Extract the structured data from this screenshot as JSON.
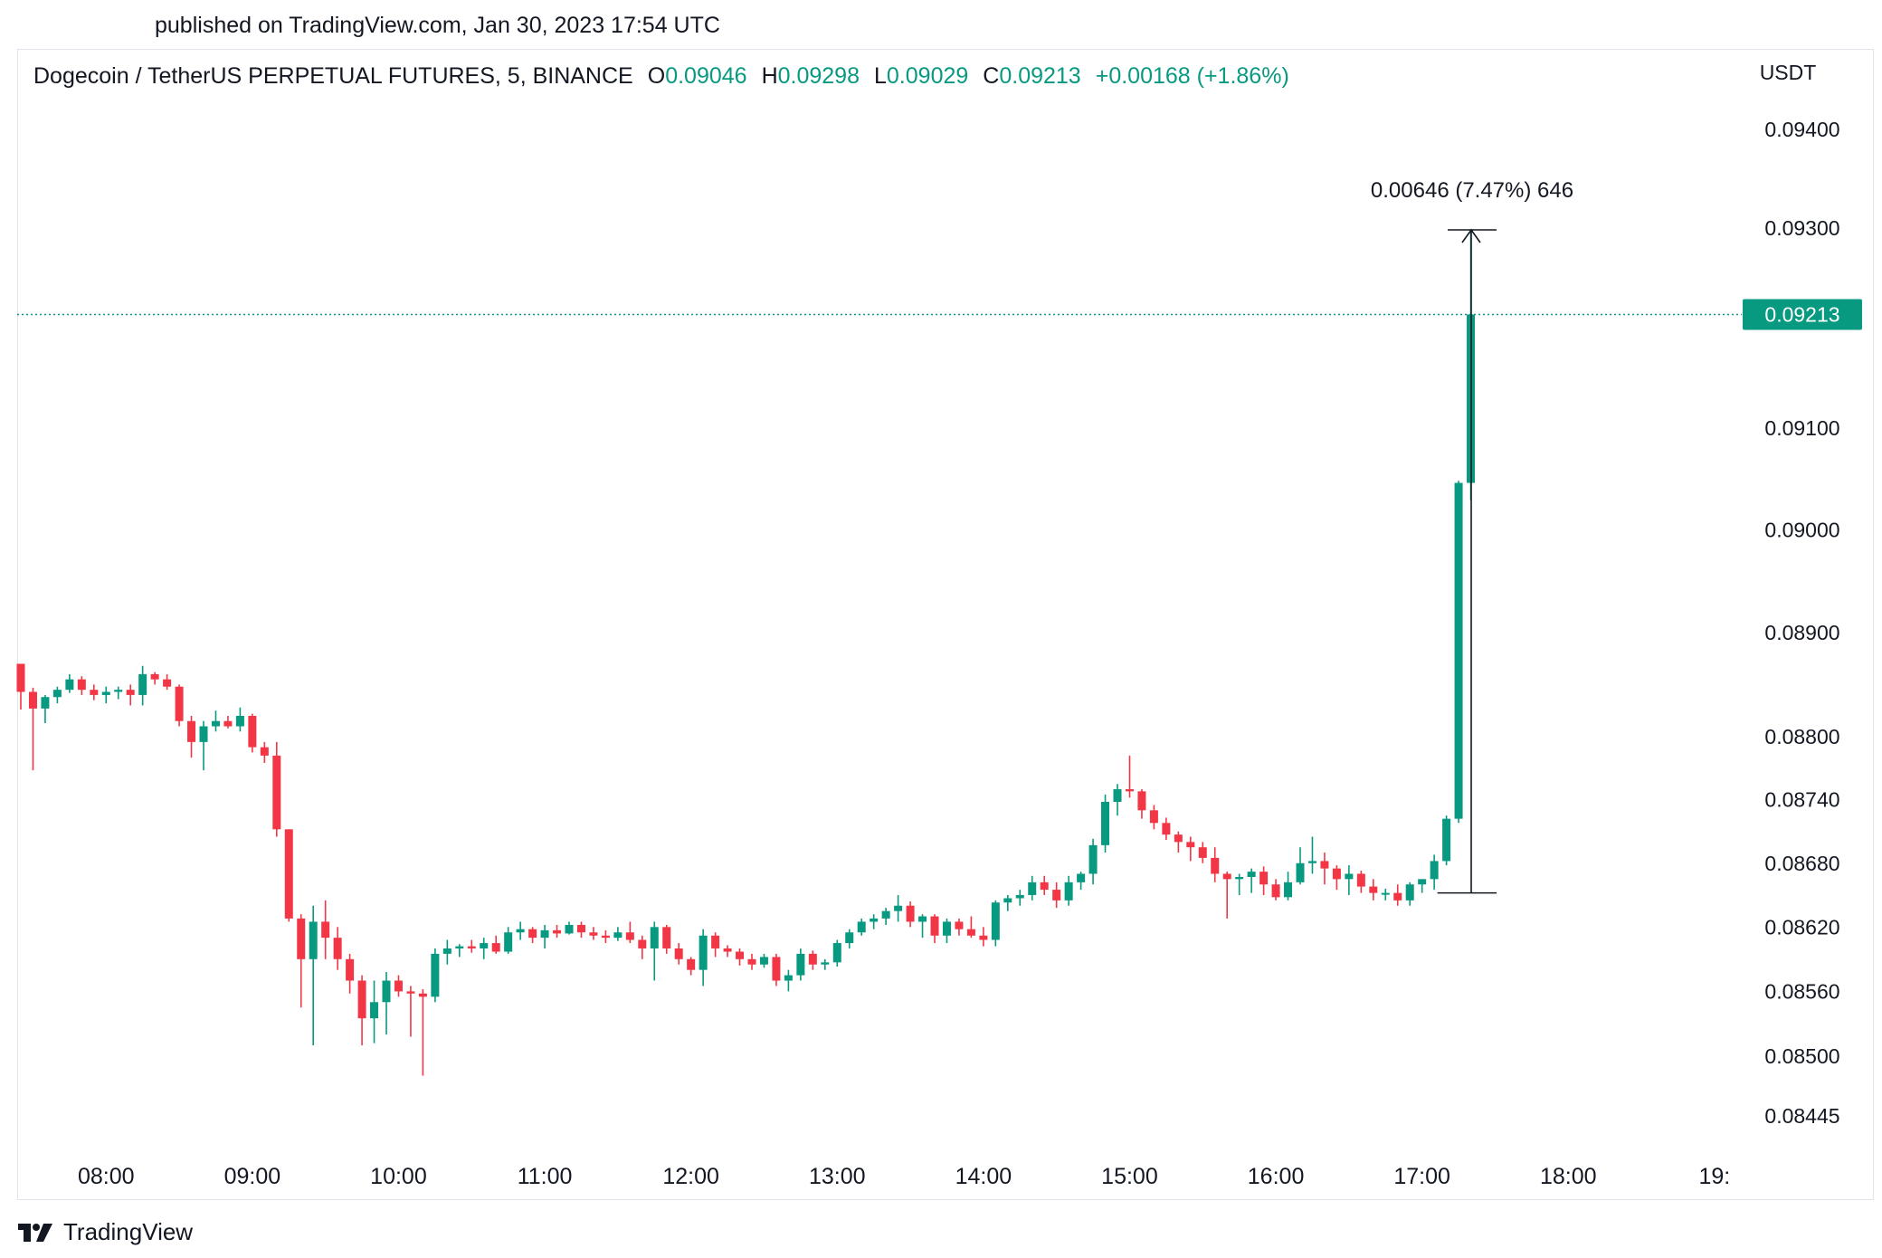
{
  "published_line": "published on TradingView.com, Jan 30, 2023 17:54 UTC",
  "header": {
    "symbol": "Dogecoin / TetherUS PERPETUAL FUTURES, 5, BINANCE",
    "o_label": "O",
    "o_value": "0.09046",
    "h_label": "H",
    "h_value": "0.09298",
    "l_label": "L",
    "l_value": "0.09029",
    "c_label": "C",
    "c_value": "0.09213",
    "change": "+0.00168 (+1.86%)"
  },
  "footer": {
    "brand": "TradingView",
    "logo_icon": "tradingview-logo-icon"
  },
  "colors": {
    "up": "#089981",
    "down": "#f23645",
    "text": "#131722",
    "grid": "#e0e3eb"
  },
  "chart_data": {
    "type": "candlestick",
    "title": "Dogecoin / TetherUS PERPETUAL FUTURES, 5, BINANCE",
    "interval": "5",
    "y_axis": {
      "unit": "USDT",
      "side": "right",
      "scale": "log",
      "ticks": [
        "0.09400",
        "0.09300",
        "0.09213",
        "0.09100",
        "0.09000",
        "0.08900",
        "0.08800",
        "0.08740",
        "0.08680",
        "0.08620",
        "0.08560",
        "0.08500",
        "0.08445"
      ]
    },
    "x_axis": {
      "ticks": [
        "08:00",
        "09:00",
        "10:00",
        "11:00",
        "12:00",
        "13:00",
        "14:00",
        "15:00",
        "16:00",
        "17:00",
        "18:00",
        "19:"
      ]
    },
    "last_price": {
      "value": "0.09213",
      "line_style": "dotted"
    },
    "measure_annotation": {
      "label": "0.00646 (7.47%) 646",
      "from": 0.08652,
      "to": 0.09298
    },
    "series": [
      {
        "name": "Dogecoin / TetherUS",
        "start_time": "07:25",
        "candles": [
          [
            0.0887,
            0.0887,
            0.08826,
            0.08843
          ],
          [
            0.08843,
            0.08847,
            0.08768,
            0.08827
          ],
          [
            0.08827,
            0.0884,
            0.08813,
            0.08838
          ],
          [
            0.08838,
            0.08848,
            0.08832,
            0.08845
          ],
          [
            0.08845,
            0.0886,
            0.08842,
            0.08855
          ],
          [
            0.08855,
            0.08858,
            0.0884,
            0.08845
          ],
          [
            0.08845,
            0.0885,
            0.08835,
            0.0884
          ],
          [
            0.0884,
            0.08848,
            0.08832,
            0.08843
          ],
          [
            0.08843,
            0.08848,
            0.08836,
            0.08845
          ],
          [
            0.08845,
            0.0885,
            0.0883,
            0.0884
          ],
          [
            0.0884,
            0.08868,
            0.0883,
            0.0886
          ],
          [
            0.0886,
            0.08862,
            0.0885,
            0.08855
          ],
          [
            0.08855,
            0.0886,
            0.08845,
            0.08848
          ],
          [
            0.08848,
            0.0885,
            0.0881,
            0.08815
          ],
          [
            0.08815,
            0.0882,
            0.0878,
            0.08795
          ],
          [
            0.08795,
            0.08815,
            0.08768,
            0.0881
          ],
          [
            0.0881,
            0.08825,
            0.08805,
            0.08815
          ],
          [
            0.08815,
            0.0882,
            0.08808,
            0.0881
          ],
          [
            0.0881,
            0.08828,
            0.08805,
            0.0882
          ],
          [
            0.0882,
            0.08822,
            0.08785,
            0.0879
          ],
          [
            0.0879,
            0.08795,
            0.08775,
            0.08782
          ],
          [
            0.08782,
            0.08795,
            0.08705,
            0.08712
          ],
          [
            0.08712,
            0.08712,
            0.08625,
            0.08628
          ],
          [
            0.08628,
            0.08632,
            0.08545,
            0.0859
          ],
          [
            0.0859,
            0.0864,
            0.0851,
            0.08625
          ],
          [
            0.08625,
            0.08645,
            0.0859,
            0.0861
          ],
          [
            0.0861,
            0.0862,
            0.0858,
            0.0859
          ],
          [
            0.0859,
            0.08595,
            0.08558,
            0.0857
          ],
          [
            0.0857,
            0.08575,
            0.0851,
            0.08535
          ],
          [
            0.08535,
            0.0857,
            0.08512,
            0.0855
          ],
          [
            0.0855,
            0.08578,
            0.0852,
            0.0857
          ],
          [
            0.0857,
            0.08575,
            0.08555,
            0.0856
          ],
          [
            0.0856,
            0.08565,
            0.08518,
            0.08558
          ],
          [
            0.08558,
            0.08562,
            0.08482,
            0.08555
          ],
          [
            0.08555,
            0.086,
            0.0855,
            0.08595
          ],
          [
            0.08595,
            0.08608,
            0.08585,
            0.086
          ],
          [
            0.086,
            0.08604,
            0.08592,
            0.08602
          ],
          [
            0.08602,
            0.08608,
            0.08596,
            0.086
          ],
          [
            0.086,
            0.0861,
            0.0859,
            0.08605
          ],
          [
            0.08605,
            0.08612,
            0.08595,
            0.08597
          ],
          [
            0.08597,
            0.0862,
            0.08595,
            0.08615
          ],
          [
            0.08615,
            0.08625,
            0.08608,
            0.08618
          ],
          [
            0.08618,
            0.0862,
            0.08605,
            0.0861
          ],
          [
            0.0861,
            0.08622,
            0.086,
            0.08617
          ],
          [
            0.08617,
            0.08622,
            0.0861,
            0.08614
          ],
          [
            0.08614,
            0.08625,
            0.08613,
            0.08622
          ],
          [
            0.08622,
            0.08625,
            0.0861,
            0.08615
          ],
          [
            0.08615,
            0.0862,
            0.08608,
            0.08612
          ],
          [
            0.08612,
            0.08617,
            0.08605,
            0.0861
          ],
          [
            0.0861,
            0.0862,
            0.08607,
            0.08615
          ],
          [
            0.08615,
            0.08625,
            0.08605,
            0.08608
          ],
          [
            0.08608,
            0.08612,
            0.0859,
            0.086
          ],
          [
            0.086,
            0.08625,
            0.0857,
            0.0862
          ],
          [
            0.0862,
            0.08622,
            0.08595,
            0.086
          ],
          [
            0.086,
            0.08605,
            0.08585,
            0.0859
          ],
          [
            0.0859,
            0.08592,
            0.08575,
            0.0858
          ],
          [
            0.0858,
            0.08618,
            0.08565,
            0.08612
          ],
          [
            0.08612,
            0.08615,
            0.08592,
            0.086
          ],
          [
            0.086,
            0.08603,
            0.08592,
            0.08597
          ],
          [
            0.08597,
            0.086,
            0.08584,
            0.0859
          ],
          [
            0.0859,
            0.08595,
            0.0858,
            0.08585
          ],
          [
            0.08585,
            0.08595,
            0.08582,
            0.08592
          ],
          [
            0.08592,
            0.08595,
            0.08565,
            0.0857
          ],
          [
            0.0857,
            0.0858,
            0.0856,
            0.08575
          ],
          [
            0.08575,
            0.086,
            0.0857,
            0.08595
          ],
          [
            0.08595,
            0.08598,
            0.0858,
            0.08585
          ],
          [
            0.08585,
            0.0859,
            0.0858,
            0.08587
          ],
          [
            0.08587,
            0.08608,
            0.08583,
            0.08605
          ],
          [
            0.08605,
            0.08618,
            0.086,
            0.08615
          ],
          [
            0.08615,
            0.08628,
            0.08612,
            0.08625
          ],
          [
            0.08625,
            0.08632,
            0.08618,
            0.08628
          ],
          [
            0.08628,
            0.08638,
            0.08622,
            0.08635
          ],
          [
            0.08635,
            0.0865,
            0.08625,
            0.0864
          ],
          [
            0.0864,
            0.08644,
            0.0862,
            0.08625
          ],
          [
            0.08625,
            0.08632,
            0.0861,
            0.0863
          ],
          [
            0.0863,
            0.08632,
            0.08605,
            0.08612
          ],
          [
            0.08612,
            0.08628,
            0.08605,
            0.08625
          ],
          [
            0.08625,
            0.08628,
            0.08612,
            0.08618
          ],
          [
            0.08618,
            0.0863,
            0.0861,
            0.08612
          ],
          [
            0.08612,
            0.0862,
            0.08602,
            0.08608
          ],
          [
            0.08608,
            0.08645,
            0.08602,
            0.08643
          ],
          [
            0.08643,
            0.0865,
            0.08635,
            0.08647
          ],
          [
            0.08647,
            0.08655,
            0.0864,
            0.0865
          ],
          [
            0.0865,
            0.08668,
            0.08645,
            0.08662
          ],
          [
            0.08662,
            0.08668,
            0.0865,
            0.08655
          ],
          [
            0.08655,
            0.08662,
            0.08638,
            0.08645
          ],
          [
            0.08645,
            0.08668,
            0.0864,
            0.08662
          ],
          [
            0.08662,
            0.08672,
            0.08655,
            0.0867
          ],
          [
            0.0867,
            0.08703,
            0.0866,
            0.08697
          ],
          [
            0.08697,
            0.08745,
            0.0869,
            0.08738
          ],
          [
            0.08738,
            0.08755,
            0.08725,
            0.0875
          ],
          [
            0.0875,
            0.08782,
            0.08742,
            0.08748
          ],
          [
            0.08748,
            0.0875,
            0.08722,
            0.0873
          ],
          [
            0.0873,
            0.08735,
            0.08712,
            0.08718
          ],
          [
            0.08718,
            0.08723,
            0.08702,
            0.08707
          ],
          [
            0.08707,
            0.0871,
            0.0869,
            0.087
          ],
          [
            0.087,
            0.08705,
            0.08682,
            0.08695
          ],
          [
            0.08695,
            0.087,
            0.0868,
            0.08685
          ],
          [
            0.08685,
            0.08695,
            0.08662,
            0.0867
          ],
          [
            0.0867,
            0.08672,
            0.08628,
            0.08665
          ],
          [
            0.08665,
            0.0867,
            0.0865,
            0.08667
          ],
          [
            0.08667,
            0.08675,
            0.08652,
            0.08672
          ],
          [
            0.08672,
            0.08677,
            0.0865,
            0.0866
          ],
          [
            0.0866,
            0.08665,
            0.08645,
            0.08648
          ],
          [
            0.08648,
            0.08672,
            0.08645,
            0.08662
          ],
          [
            0.08662,
            0.08695,
            0.0866,
            0.0868
          ],
          [
            0.0868,
            0.08705,
            0.0867,
            0.08682
          ],
          [
            0.08682,
            0.0869,
            0.0866,
            0.08675
          ],
          [
            0.08675,
            0.08678,
            0.08655,
            0.08665
          ],
          [
            0.08665,
            0.08678,
            0.0865,
            0.0867
          ],
          [
            0.0867,
            0.08673,
            0.08652,
            0.08658
          ],
          [
            0.08658,
            0.08665,
            0.08645,
            0.08652
          ],
          [
            0.08652,
            0.08656,
            0.08645,
            0.08652
          ],
          [
            0.08652,
            0.0866,
            0.0864,
            0.08645
          ],
          [
            0.08645,
            0.08662,
            0.0864,
            0.0866
          ],
          [
            0.0866,
            0.08665,
            0.08652,
            0.08665
          ],
          [
            0.08665,
            0.08688,
            0.08655,
            0.08682
          ],
          [
            0.08682,
            0.08725,
            0.08678,
            0.08722
          ],
          [
            0.08722,
            0.09048,
            0.08718,
            0.09046
          ],
          [
            0.09046,
            0.09298,
            0.09029,
            0.09213
          ]
        ]
      }
    ]
  }
}
